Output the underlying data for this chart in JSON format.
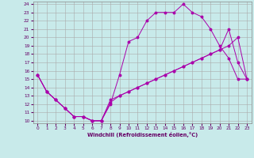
{
  "xlabel": "Windchill (Refroidissement éolien,°C)",
  "bg_color": "#c8eaea",
  "grid_color": "#aaaaaa",
  "line_color": "#aa00aa",
  "xlim": [
    -0.5,
    23.5
  ],
  "ylim": [
    9.7,
    24.3
  ],
  "xticks": [
    0,
    1,
    2,
    3,
    4,
    5,
    6,
    7,
    8,
    9,
    10,
    11,
    12,
    13,
    14,
    15,
    16,
    17,
    18,
    19,
    20,
    21,
    22,
    23
  ],
  "yticks": [
    10,
    11,
    12,
    13,
    14,
    15,
    16,
    17,
    18,
    19,
    20,
    21,
    22,
    23,
    24
  ],
  "line1_x": [
    0,
    1,
    2,
    3,
    4,
    5,
    6,
    7,
    8,
    9,
    10,
    11,
    12,
    13,
    14,
    15,
    16,
    17,
    18,
    19,
    20,
    21,
    22,
    23
  ],
  "line1_y": [
    15.5,
    13.5,
    12.5,
    11.5,
    10.5,
    10.5,
    10.0,
    10.0,
    12.0,
    15.5,
    19.5,
    20.0,
    22.0,
    23.0,
    23.0,
    23.0,
    24.0,
    23.0,
    22.5,
    21.0,
    19.0,
    17.5,
    15.0,
    15.0
  ],
  "line2_x": [
    0,
    1,
    2,
    3,
    4,
    5,
    6,
    7,
    8,
    9,
    10,
    11,
    12,
    13,
    14,
    15,
    16,
    17,
    18,
    19,
    20,
    21,
    22,
    23
  ],
  "line2_y": [
    15.5,
    13.5,
    12.5,
    11.5,
    10.5,
    10.5,
    10.0,
    10.0,
    12.2,
    13.0,
    13.5,
    14.0,
    14.5,
    15.0,
    15.5,
    16.0,
    16.5,
    17.0,
    17.5,
    18.0,
    18.5,
    21.0,
    17.0,
    15.0
  ],
  "line3_x": [
    0,
    1,
    2,
    3,
    4,
    5,
    6,
    7,
    8,
    9,
    10,
    11,
    12,
    13,
    14,
    15,
    16,
    17,
    18,
    19,
    20,
    21,
    22,
    23
  ],
  "line3_y": [
    15.5,
    13.5,
    12.5,
    11.5,
    10.5,
    10.5,
    10.0,
    10.0,
    12.5,
    13.0,
    13.5,
    14.0,
    14.5,
    15.0,
    15.5,
    16.0,
    16.5,
    17.0,
    17.5,
    18.0,
    18.5,
    19.0,
    20.0,
    15.0
  ]
}
